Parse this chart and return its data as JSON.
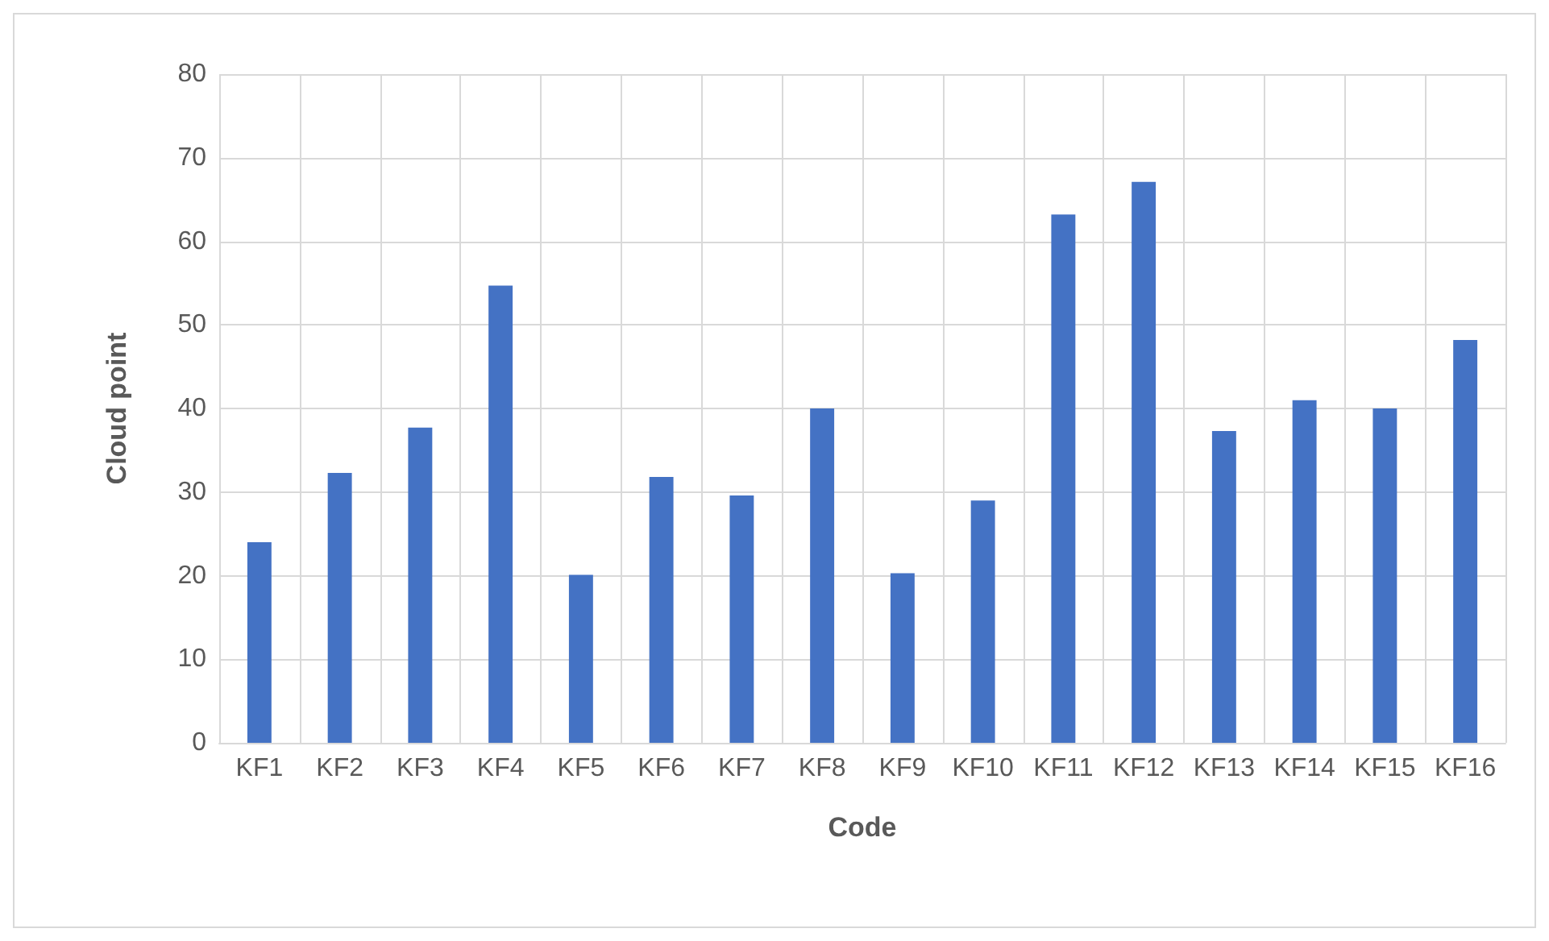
{
  "chart_data": {
    "type": "bar",
    "xlabel": "Code",
    "ylabel": "Cloud point",
    "categories": [
      "KF1",
      "KF2",
      "KF3",
      "KF4",
      "KF5",
      "KF6",
      "KF7",
      "KF8",
      "KF9",
      "KF10",
      "KF11",
      "KF12",
      "KF13",
      "KF14",
      "KF15",
      "KF16"
    ],
    "values": [
      24,
      32.3,
      37.7,
      54.7,
      20.1,
      31.8,
      29.6,
      40,
      20.3,
      29,
      63.2,
      67.1,
      37.3,
      41,
      40,
      48.2
    ],
    "color": "#4472c4",
    "ylim": [
      0,
      80
    ],
    "yticks": [
      0,
      10,
      20,
      30,
      40,
      50,
      60,
      70,
      80
    ],
    "grid": true
  }
}
